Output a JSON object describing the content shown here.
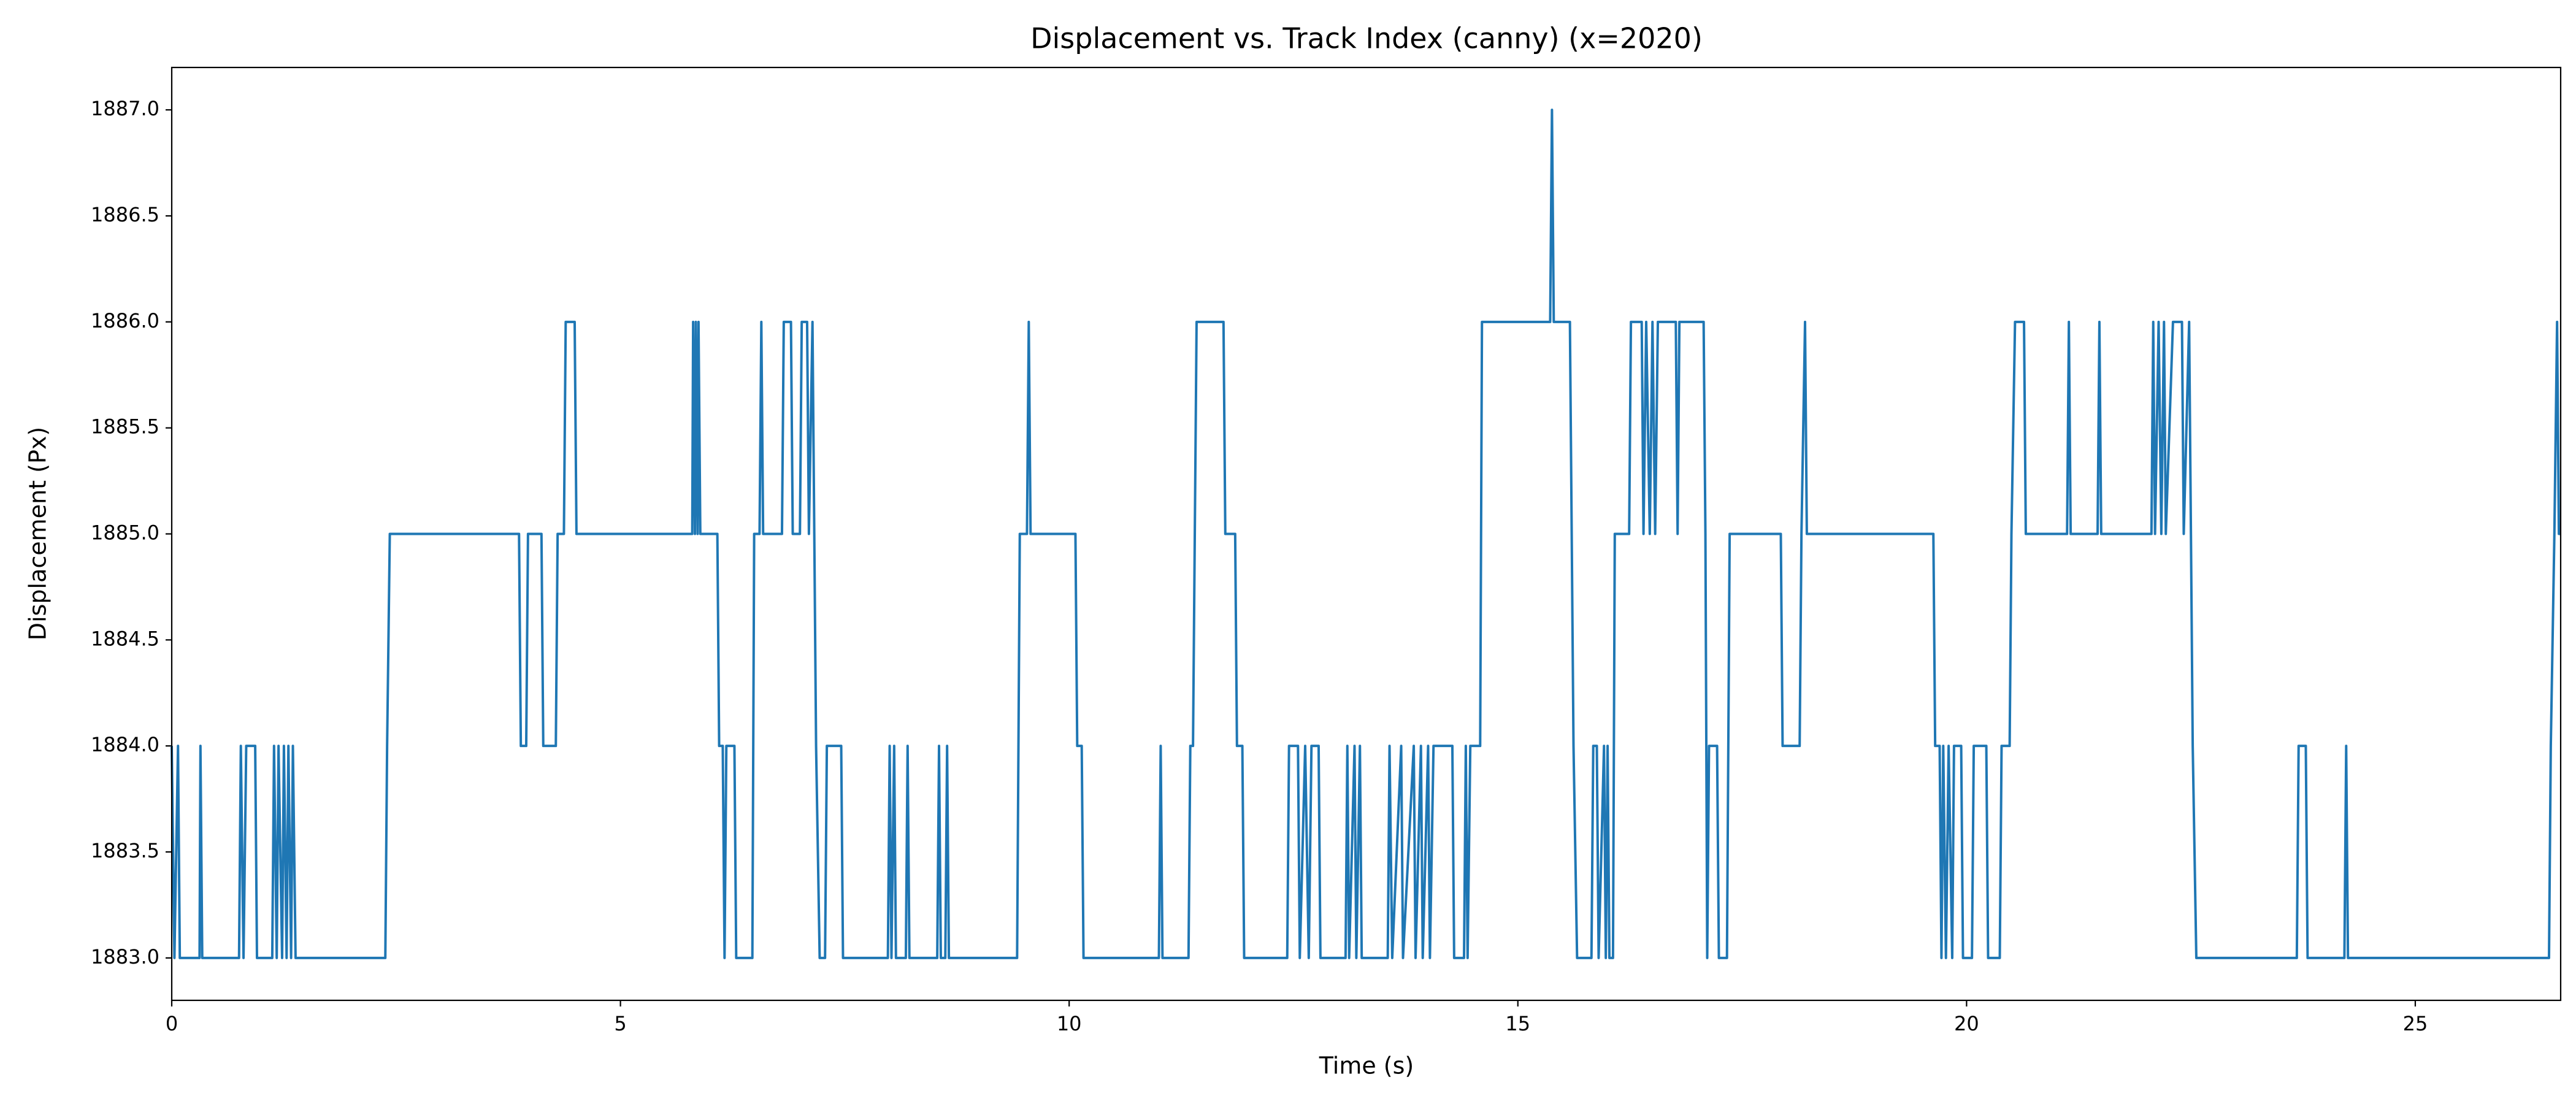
{
  "chart_data": {
    "type": "line",
    "title": "Displacement vs. Track Index (canny) (x=2020)",
    "x_label": "Time (s)",
    "y_label": "Displacement (Px)",
    "x": [
      0,
      0.03,
      0.07,
      0.09,
      0.31,
      0.32,
      0.34,
      0.75,
      0.77,
      0.8,
      0.83,
      0.93,
      0.95,
      1.12,
      1.14,
      1.17,
      1.19,
      1.23,
      1.25,
      1.28,
      1.3,
      1.33,
      1.35,
      1.38,
      2.38,
      2.4,
      2.43,
      3.87,
      3.89,
      3.95,
      3.97,
      4.12,
      4.14,
      4.28,
      4.3,
      4.37,
      4.39,
      4.49,
      4.51,
      5.8,
      5.81,
      5.83,
      5.84,
      5.86,
      5.87,
      5.89,
      6.08,
      6.1,
      6.14,
      6.16,
      6.18,
      6.27,
      6.29,
      6.47,
      6.49,
      6.55,
      6.57,
      6.59,
      6.8,
      6.82,
      6.9,
      6.92,
      7.0,
      7.02,
      7.08,
      7.1,
      7.14,
      7.16,
      7.18,
      7.22,
      7.28,
      7.3,
      7.46,
      7.48,
      7.98,
      8.0,
      8.02,
      8.05,
      8.07,
      8.18,
      8.2,
      8.22,
      8.53,
      8.55,
      8.57,
      8.62,
      8.64,
      8.66,
      9.42,
      9.45,
      9.53,
      9.55,
      9.57,
      10.07,
      10.09,
      10.14,
      10.16,
      11.0,
      11.02,
      11.04,
      11.33,
      11.35,
      11.38,
      11.4,
      11.42,
      11.72,
      11.74,
      11.85,
      11.87,
      11.93,
      11.95,
      12.43,
      12.45,
      12.55,
      12.57,
      12.63,
      12.67,
      12.7,
      12.78,
      12.8,
      13.08,
      13.1,
      13.12,
      13.18,
      13.2,
      13.24,
      13.26,
      13.55,
      13.57,
      13.6,
      13.7,
      13.72,
      13.84,
      13.86,
      13.92,
      13.94,
      14.0,
      14.02,
      14.06,
      14.27,
      14.29,
      14.4,
      14.42,
      14.44,
      14.47,
      14.58,
      14.6,
      15.36,
      15.38,
      15.4,
      15.58,
      15.62,
      15.66,
      15.82,
      15.84,
      15.88,
      15.9,
      15.96,
      15.98,
      16.0,
      16.02,
      16.06,
      16.08,
      16.24,
      16.26,
      16.38,
      16.4,
      16.43,
      16.47,
      16.5,
      16.53,
      16.56,
      16.76,
      16.78,
      16.8,
      17.07,
      17.09,
      17.11,
      17.13,
      17.22,
      17.24,
      17.33,
      17.36,
      17.93,
      17.95,
      18.14,
      18.16,
      18.2,
      18.22,
      19.63,
      19.65,
      19.7,
      19.72,
      19.74,
      19.77,
      19.8,
      19.84,
      19.86,
      19.94,
      19.96,
      20.06,
      20.08,
      20.22,
      20.24,
      20.37,
      20.39,
      20.48,
      20.5,
      20.54,
      20.64,
      20.66,
      21.12,
      21.14,
      21.16,
      21.46,
      21.48,
      21.5,
      22.06,
      22.08,
      22.1,
      22.14,
      22.17,
      22.2,
      22.22,
      22.3,
      22.4,
      22.42,
      22.48,
      22.5,
      22.52,
      22.56,
      23.68,
      23.7,
      23.78,
      23.8,
      24.21,
      24.23,
      24.25,
      26.49,
      26.51,
      26.55,
      26.58,
      26.6,
      26.62
    ],
    "series": [
      {
        "color": "#1f77b4",
        "values": [
          1884,
          1883,
          1884,
          1883,
          1883,
          1884,
          1883,
          1883,
          1884,
          1883,
          1884,
          1884,
          1883,
          1883,
          1884,
          1883,
          1884,
          1883,
          1884,
          1883,
          1884,
          1883,
          1884,
          1883,
          1883,
          1884,
          1885,
          1885,
          1884,
          1884,
          1885,
          1885,
          1884,
          1884,
          1885,
          1885,
          1886,
          1886,
          1885,
          1885,
          1886,
          1885,
          1886,
          1885,
          1886,
          1885,
          1885,
          1884,
          1884,
          1883,
          1884,
          1884,
          1883,
          1883,
          1885,
          1885,
          1886,
          1885,
          1885,
          1886,
          1886,
          1885,
          1885,
          1886,
          1886,
          1885,
          1886,
          1885,
          1884,
          1883,
          1883,
          1884,
          1884,
          1883,
          1883,
          1884,
          1883,
          1884,
          1883,
          1883,
          1884,
          1883,
          1883,
          1884,
          1883,
          1883,
          1884,
          1883,
          1883,
          1885,
          1885,
          1886,
          1885,
          1885,
          1884,
          1884,
          1883,
          1883,
          1884,
          1883,
          1883,
          1884,
          1884,
          1885,
          1886,
          1886,
          1885,
          1885,
          1884,
          1884,
          1883,
          1883,
          1884,
          1884,
          1883,
          1884,
          1883,
          1884,
          1884,
          1883,
          1883,
          1884,
          1883,
          1884,
          1883,
          1884,
          1883,
          1883,
          1884,
          1883,
          1884,
          1883,
          1884,
          1883,
          1884,
          1883,
          1884,
          1883,
          1884,
          1884,
          1883,
          1883,
          1884,
          1883,
          1884,
          1884,
          1886,
          1886,
          1887,
          1886,
          1886,
          1884,
          1883,
          1883,
          1884,
          1884,
          1883,
          1884,
          1883,
          1884,
          1883,
          1883,
          1885,
          1885,
          1886,
          1886,
          1885,
          1886,
          1885,
          1886,
          1885,
          1886,
          1886,
          1885,
          1886,
          1886,
          1885,
          1883,
          1884,
          1884,
          1883,
          1883,
          1885,
          1885,
          1884,
          1884,
          1885,
          1886,
          1885,
          1885,
          1884,
          1884,
          1883,
          1884,
          1883,
          1884,
          1883,
          1884,
          1884,
          1883,
          1883,
          1884,
          1884,
          1883,
          1883,
          1884,
          1884,
          1885,
          1886,
          1886,
          1885,
          1885,
          1886,
          1885,
          1885,
          1886,
          1885,
          1885,
          1886,
          1885,
          1886,
          1885,
          1886,
          1885,
          1886,
          1886,
          1885,
          1886,
          1885,
          1884,
          1883,
          1883,
          1884,
          1884,
          1883,
          1883,
          1884,
          1883,
          1883,
          1884,
          1885,
          1886,
          1885,
          1885
        ]
      }
    ],
    "xlim": [
      0,
      26.62
    ],
    "ylim": [
      1882.8,
      1887.2
    ],
    "xticks": [
      0,
      5,
      10,
      15,
      20,
      25
    ],
    "yticks": [
      {
        "value": 1883,
        "label": "1883.0"
      },
      {
        "value": 1883.5,
        "label": "1883.5"
      },
      {
        "value": 1884,
        "label": "1884.0"
      },
      {
        "value": 1884.5,
        "label": "1884.5"
      },
      {
        "value": 1885,
        "label": "1885.0"
      },
      {
        "value": 1885.5,
        "label": "1885.5"
      },
      {
        "value": 1886,
        "label": "1886.0"
      },
      {
        "value": 1886.5,
        "label": "1886.5"
      },
      {
        "value": 1887,
        "label": "1887.0"
      }
    ],
    "grid": false
  }
}
